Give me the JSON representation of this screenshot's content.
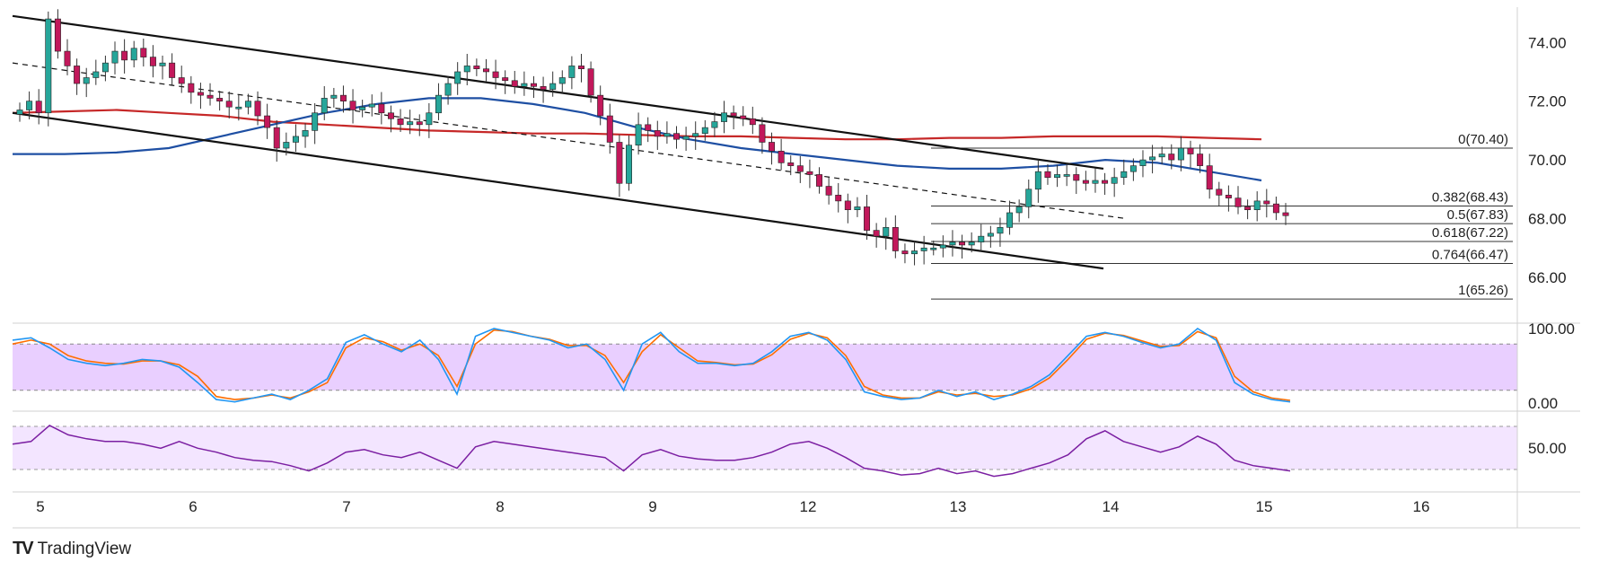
{
  "chart_data": {
    "type": "candlestick",
    "price_axis": {
      "ticks": [
        "74.00",
        "72.00",
        "70.00",
        "68.00",
        "66.00"
      ],
      "ylim": [
        64.5,
        75.2
      ]
    },
    "x_ticks": [
      "5",
      "6",
      "7",
      "8",
      "9",
      "12",
      "13",
      "14",
      "15",
      "16"
    ],
    "close_series": [
      71.7,
      72.0,
      71.6,
      74.8,
      73.7,
      73.2,
      72.6,
      72.8,
      73.0,
      73.3,
      73.7,
      73.4,
      73.8,
      73.5,
      73.2,
      73.3,
      72.8,
      72.6,
      72.3,
      72.2,
      72.1,
      72.0,
      71.8,
      71.8,
      72.0,
      71.5,
      71.1,
      70.4,
      70.6,
      70.8,
      71.0,
      71.6,
      72.1,
      72.2,
      72.0,
      71.7,
      71.8,
      71.9,
      71.6,
      71.4,
      71.2,
      71.3,
      71.2,
      71.6,
      72.2,
      72.6,
      73.0,
      73.2,
      73.1,
      73.0,
      72.8,
      72.7,
      72.5,
      72.6,
      72.5,
      72.4,
      72.6,
      72.8,
      73.2,
      73.1,
      72.2,
      71.5,
      70.6,
      69.2,
      70.5,
      71.2,
      71.0,
      70.8,
      70.9,
      70.7,
      70.8,
      70.9,
      71.1,
      71.3,
      71.6,
      71.5,
      71.4,
      71.2,
      70.6,
      70.3,
      69.9,
      69.8,
      69.6,
      69.5,
      69.1,
      68.8,
      68.6,
      68.3,
      68.4,
      67.6,
      67.4,
      67.7,
      66.9,
      66.8,
      66.9,
      67.0,
      67.0,
      67.1,
      67.2,
      67.1,
      67.2,
      67.4,
      67.5,
      67.7,
      68.2,
      68.4,
      69.0,
      69.6,
      69.4,
      69.5,
      69.5,
      69.3,
      69.2,
      69.3,
      69.2,
      69.4,
      69.6,
      69.8,
      70.0,
      70.1,
      70.2,
      70.0,
      70.4,
      70.2,
      69.8,
      69.0,
      68.8,
      68.7,
      68.4,
      68.3,
      68.6,
      68.5,
      68.2,
      68.1
    ],
    "channel_upper": [
      [
        0,
        74.9
      ],
      [
        1215,
        69.7
      ]
    ],
    "channel_mid": [
      [
        0,
        73.3
      ],
      [
        1240,
        68.0
      ]
    ],
    "channel_lower": [
      [
        0,
        71.6
      ],
      [
        1215,
        66.3
      ]
    ],
    "ma_red": [
      71.6,
      71.65,
      71.7,
      71.6,
      71.5,
      71.3,
      71.2,
      71.1,
      71.0,
      70.95,
      70.9,
      70.9,
      70.85,
      70.8,
      70.8,
      70.75,
      70.7,
      70.7,
      70.75,
      70.75,
      70.8,
      70.8,
      70.8,
      70.75,
      70.7
    ],
    "ma_blue": [
      70.2,
      70.2,
      70.25,
      70.4,
      70.8,
      71.2,
      71.6,
      71.9,
      72.1,
      72.1,
      71.9,
      71.6,
      71.1,
      70.7,
      70.4,
      70.2,
      70.0,
      69.8,
      69.7,
      69.7,
      69.8,
      70.0,
      69.9,
      69.6,
      69.3
    ],
    "fib_levels": [
      {
        "label": "0(70.40)",
        "value": 70.4
      },
      {
        "label": "0.382(68.43)",
        "value": 68.43
      },
      {
        "label": "0.5(67.83)",
        "value": 67.83
      },
      {
        "label": "0.618(67.22)",
        "value": 67.22
      },
      {
        "label": "0.764(66.47)",
        "value": 66.47
      },
      {
        "label": "1(65.26)",
        "value": 65.26
      }
    ],
    "stoch": {
      "ticks": [
        "100.00",
        "0.00"
      ],
      "upper": 80,
      "lower": 20,
      "k": [
        85,
        88,
        75,
        60,
        55,
        52,
        55,
        60,
        58,
        50,
        30,
        8,
        5,
        10,
        15,
        8,
        20,
        35,
        82,
        92,
        80,
        70,
        85,
        60,
        15,
        90,
        100,
        95,
        90,
        85,
        75,
        80,
        60,
        20,
        80,
        95,
        70,
        55,
        55,
        52,
        55,
        70,
        90,
        95,
        85,
        60,
        18,
        12,
        8,
        10,
        20,
        12,
        18,
        8,
        15,
        25,
        40,
        65,
        90,
        95,
        90,
        82,
        75,
        80,
        100,
        85,
        30,
        15,
        8,
        5
      ],
      "d": [
        80,
        85,
        80,
        65,
        58,
        55,
        54,
        58,
        58,
        53,
        38,
        12,
        8,
        10,
        14,
        10,
        18,
        30,
        75,
        88,
        83,
        72,
        80,
        65,
        25,
        80,
        98,
        96,
        90,
        86,
        78,
        78,
        65,
        30,
        70,
        92,
        75,
        58,
        56,
        53,
        54,
        66,
        86,
        94,
        88,
        65,
        25,
        14,
        10,
        10,
        18,
        14,
        16,
        12,
        14,
        22,
        36,
        60,
        86,
        94,
        91,
        84,
        77,
        78,
        96,
        88,
        38,
        18,
        10,
        7
      ]
    },
    "rsi": {
      "ticks": [
        "50.00"
      ],
      "values": [
        58,
        60,
        72,
        65,
        62,
        60,
        60,
        58,
        55,
        60,
        55,
        52,
        48,
        46,
        45,
        42,
        38,
        44,
        52,
        54,
        50,
        48,
        52,
        46,
        40,
        56,
        60,
        58,
        56,
        54,
        52,
        50,
        48,
        38,
        50,
        54,
        49,
        47,
        46,
        46,
        48,
        52,
        58,
        60,
        55,
        48,
        40,
        38,
        35,
        36,
        40,
        36,
        38,
        34,
        36,
        40,
        44,
        50,
        62,
        68,
        60,
        56,
        52,
        56,
        64,
        58,
        46,
        42,
        40,
        38
      ]
    }
  },
  "watermark": {
    "text": "TradingView",
    "logo": "TV"
  },
  "colors": {
    "bull": "#26a69a",
    "bear": "#c2185b",
    "ma_red": "#c62828",
    "ma_blue": "#1e4fa3",
    "stoch_k": "#2196f3",
    "stoch_d": "#ff6d00",
    "stoch_band": "#e9cfff",
    "rsi_line": "#7b1fa2",
    "rsi_band": "#f3e5ff"
  }
}
